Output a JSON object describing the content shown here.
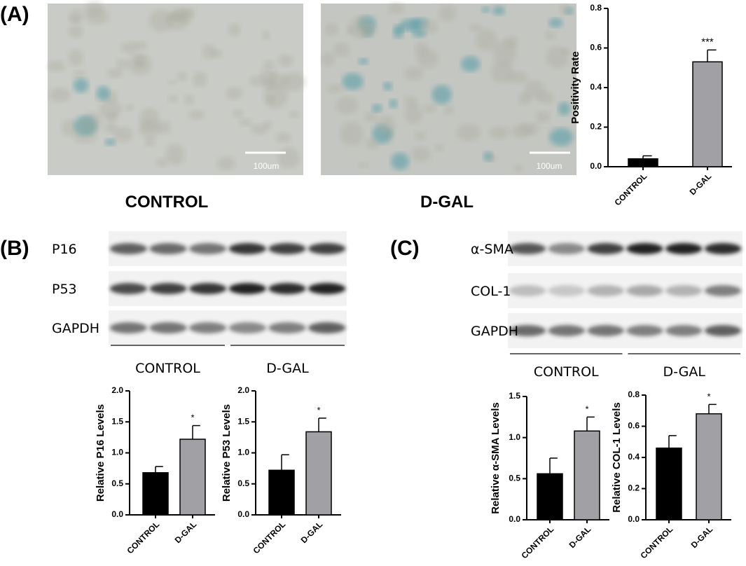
{
  "panels": {
    "a": {
      "label": "(A)",
      "images": [
        {
          "caption": "CONTROL",
          "scale_bar": "100um"
        },
        {
          "caption": "D-GAL",
          "scale_bar": "100um"
        }
      ]
    },
    "b": {
      "label": "(B)",
      "blot": {
        "rows": [
          "P16",
          "P53",
          "GAPDH"
        ],
        "groups": [
          "CONTROL",
          "D-GAL"
        ]
      }
    },
    "c": {
      "label": "(C)",
      "blot": {
        "rows": [
          "α-SMA",
          "COL-1",
          "GAPDH"
        ],
        "groups": [
          "CONTROL",
          "D-GAL"
        ]
      }
    }
  },
  "chart_data": [
    {
      "type": "bar",
      "y_label": "Positivity Rate",
      "categories": [
        "CONTROL",
        "D-GAL"
      ],
      "values": [
        0.04,
        0.53
      ],
      "errors": [
        0.015,
        0.06
      ],
      "significance": [
        null,
        "***"
      ],
      "colors": [
        "#000000",
        "#a0a0a5"
      ],
      "ylim": [
        0,
        0.8
      ],
      "yticks": [
        {
          "value": 0,
          "label": "0.0"
        },
        0.2,
        0.4,
        0.6,
        0.8
      ]
    },
    {
      "type": "bar",
      "y_label": "Relative P16 Levels",
      "categories": [
        "CONTROL",
        "D-GAL"
      ],
      "values": [
        0.68,
        1.22
      ],
      "errors": [
        0.1,
        0.22
      ],
      "significance": [
        null,
        "*"
      ],
      "colors": [
        "#000000",
        "#a0a0a5"
      ],
      "ylim": [
        0,
        2
      ],
      "yticks": [
        {
          "value": 0,
          "label": "0.0"
        },
        0.5,
        {
          "value": 1,
          "label": "1.0"
        },
        1.5,
        {
          "value": 2,
          "label": "2.0"
        }
      ]
    },
    {
      "type": "bar",
      "y_label": "Relative P53 Levels",
      "categories": [
        "CONTROL",
        "D-GAL"
      ],
      "values": [
        0.72,
        1.34
      ],
      "errors": [
        0.25,
        0.22
      ],
      "significance": [
        null,
        "*"
      ],
      "colors": [
        "#000000",
        "#a0a0a5"
      ],
      "ylim": [
        0,
        2
      ],
      "yticks": [
        {
          "value": 0,
          "label": "0.0"
        },
        0.5,
        {
          "value": 1,
          "label": "1.0"
        },
        1.5,
        {
          "value": 2,
          "label": "2.0"
        }
      ]
    },
    {
      "type": "bar",
      "y_label": "Relative α-SMA Levels",
      "categories": [
        "CONTROL",
        "D-GAL"
      ],
      "values": [
        0.56,
        1.08
      ],
      "errors": [
        0.19,
        0.17
      ],
      "significance": [
        null,
        "*"
      ],
      "colors": [
        "#000000",
        "#a0a0a5"
      ],
      "ylim": [
        0,
        1.5
      ],
      "yticks": [
        {
          "value": 0,
          "label": "0.0"
        },
        0.5,
        {
          "value": 1,
          "label": "1.0"
        },
        1.5
      ]
    },
    {
      "type": "bar",
      "y_label": "Relative COL-1 Levels",
      "categories": [
        "CONTROL",
        "D-GAL"
      ],
      "values": [
        0.46,
        0.68
      ],
      "errors": [
        0.08,
        0.06
      ],
      "significance": [
        null,
        "*"
      ],
      "colors": [
        "#000000",
        "#a0a0a5"
      ],
      "ylim": [
        0,
        0.8
      ],
      "yticks": [
        {
          "value": 0,
          "label": "0.0"
        },
        0.2,
        0.4,
        0.6,
        0.8
      ]
    }
  ]
}
